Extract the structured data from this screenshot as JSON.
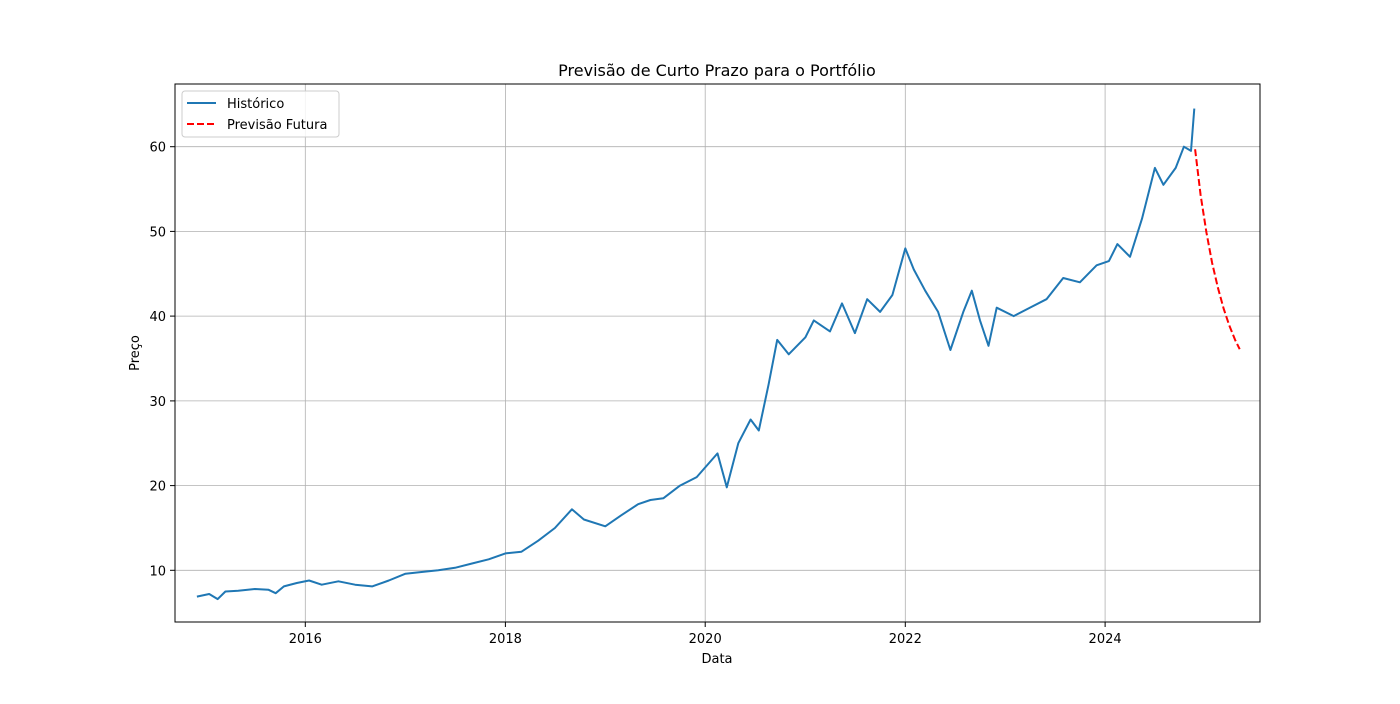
{
  "chart_data": {
    "type": "line",
    "title": "Previsão de Curto Prazo para o Portfólio",
    "xlabel": "Data",
    "ylabel": "Preço",
    "x_axis_type": "date",
    "xlim": [
      "2014-09-12",
      "2025-07-20"
    ],
    "ylim": [
      3.9,
      67.4
    ],
    "x_ticks": [
      {
        "label": "2016",
        "date": "2016-01-01"
      },
      {
        "label": "2018",
        "date": "2018-01-01"
      },
      {
        "label": "2020",
        "date": "2020-01-01"
      },
      {
        "label": "2022",
        "date": "2022-01-01"
      },
      {
        "label": "2024",
        "date": "2024-01-01"
      }
    ],
    "y_ticks": [
      10,
      20,
      30,
      40,
      50,
      60
    ],
    "grid": true,
    "legend": {
      "position": "top-left"
    },
    "series": [
      {
        "name": "Histórico",
        "style": "solid",
        "color": "#1f77b4",
        "points": [
          [
            "2014-12-01",
            6.9
          ],
          [
            "2015-01-15",
            7.2
          ],
          [
            "2015-02-15",
            6.6
          ],
          [
            "2015-03-15",
            7.5
          ],
          [
            "2015-05-01",
            7.6
          ],
          [
            "2015-07-01",
            7.8
          ],
          [
            "2015-08-20",
            7.7
          ],
          [
            "2015-09-15",
            7.3
          ],
          [
            "2015-10-15",
            8.1
          ],
          [
            "2015-12-01",
            8.5
          ],
          [
            "2016-01-15",
            8.8
          ],
          [
            "2016-03-01",
            8.3
          ],
          [
            "2016-05-01",
            8.7
          ],
          [
            "2016-07-01",
            8.3
          ],
          [
            "2016-09-01",
            8.1
          ],
          [
            "2016-11-01",
            8.8
          ],
          [
            "2017-01-01",
            9.6
          ],
          [
            "2017-03-01",
            9.8
          ],
          [
            "2017-05-01",
            10.0
          ],
          [
            "2017-07-01",
            10.3
          ],
          [
            "2017-09-01",
            10.8
          ],
          [
            "2017-11-01",
            11.3
          ],
          [
            "2018-01-01",
            12.0
          ],
          [
            "2018-03-01",
            12.2
          ],
          [
            "2018-05-01",
            13.5
          ],
          [
            "2018-07-01",
            15.0
          ],
          [
            "2018-09-01",
            17.2
          ],
          [
            "2018-10-15",
            16.0
          ],
          [
            "2019-01-01",
            15.2
          ],
          [
            "2019-03-01",
            16.5
          ],
          [
            "2019-05-01",
            17.8
          ],
          [
            "2019-06-15",
            18.3
          ],
          [
            "2019-08-01",
            18.5
          ],
          [
            "2019-10-01",
            20.0
          ],
          [
            "2019-12-01",
            21.0
          ],
          [
            "2020-02-15",
            23.8
          ],
          [
            "2020-03-20",
            19.8
          ],
          [
            "2020-05-01",
            25.0
          ],
          [
            "2020-06-15",
            27.8
          ],
          [
            "2020-07-15",
            26.5
          ],
          [
            "2020-08-20",
            32.0
          ],
          [
            "2020-09-20",
            37.2
          ],
          [
            "2020-11-01",
            35.5
          ],
          [
            "2021-01-01",
            37.5
          ],
          [
            "2021-02-01",
            39.5
          ],
          [
            "2021-04-01",
            38.2
          ],
          [
            "2021-05-15",
            41.5
          ],
          [
            "2021-07-01",
            38.0
          ],
          [
            "2021-08-15",
            42.0
          ],
          [
            "2021-10-01",
            40.5
          ],
          [
            "2021-11-15",
            42.5
          ],
          [
            "2022-01-01",
            48.0
          ],
          [
            "2022-02-01",
            45.5
          ],
          [
            "2022-03-15",
            43.0
          ],
          [
            "2022-05-01",
            40.5
          ],
          [
            "2022-06-15",
            36.0
          ],
          [
            "2022-08-01",
            40.5
          ],
          [
            "2022-09-01",
            43.0
          ],
          [
            "2022-10-01",
            39.5
          ],
          [
            "2022-11-01",
            36.5
          ],
          [
            "2022-12-01",
            41.0
          ],
          [
            "2023-02-01",
            40.0
          ],
          [
            "2023-04-01",
            41.0
          ],
          [
            "2023-06-01",
            42.0
          ],
          [
            "2023-08-01",
            44.5
          ],
          [
            "2023-10-01",
            44.0
          ],
          [
            "2023-12-01",
            46.0
          ],
          [
            "2024-01-15",
            46.5
          ],
          [
            "2024-02-15",
            48.5
          ],
          [
            "2024-04-01",
            47.0
          ],
          [
            "2024-05-15",
            51.5
          ],
          [
            "2024-07-01",
            57.5
          ],
          [
            "2024-08-01",
            55.5
          ],
          [
            "2024-09-15",
            57.5
          ],
          [
            "2024-10-15",
            60.0
          ],
          [
            "2024-11-10",
            59.5
          ],
          [
            "2024-11-22",
            64.5
          ]
        ]
      },
      {
        "name": "Previsão Futura",
        "style": "dashed",
        "color": "#ff0000",
        "points": [
          [
            "2024-11-25",
            59.7
          ],
          [
            "2024-12-15",
            54.3
          ],
          [
            "2025-01-05",
            49.9
          ],
          [
            "2025-01-26",
            46.3
          ],
          [
            "2025-02-16",
            43.4
          ],
          [
            "2025-03-09",
            40.9
          ],
          [
            "2025-03-30",
            38.9
          ],
          [
            "2025-04-20",
            37.2
          ],
          [
            "2025-05-07",
            36.1
          ]
        ]
      }
    ]
  }
}
